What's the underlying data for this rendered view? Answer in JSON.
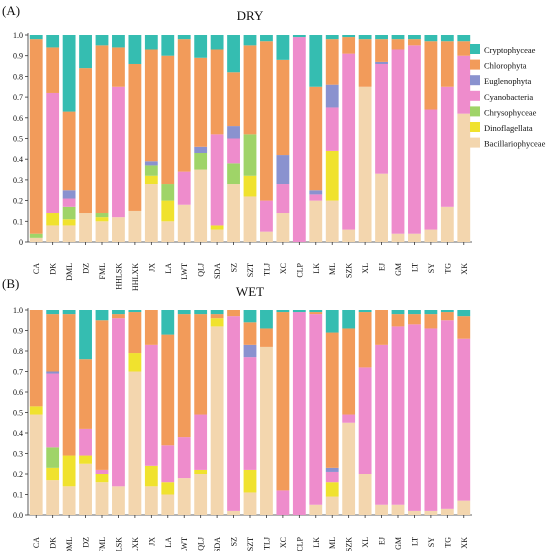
{
  "colors": {
    "Cryptophyceae": "#35bdb1",
    "Chlorophyta": "#f29b5a",
    "Euglenophyta": "#8a92cf",
    "Cyanobacteria": "#ee8ccc",
    "Chrysophyceae": "#9fd468",
    "Dinoflagellata": "#f0e22e",
    "Bacillariophyceae": "#f3d6ae"
  },
  "chart_data": [
    {
      "type": "bar",
      "stacked": true,
      "panel_label": "(A)",
      "title": "DRY",
      "ylim": [
        0,
        1
      ],
      "yticks": [
        "0",
        "0.1",
        "0.2",
        "0.3",
        "0.4",
        "0.5",
        "0.6",
        "0.7",
        "0.8",
        "0.9",
        "1.0"
      ],
      "legend": [
        "Cryptophyceae",
        "Chlorophyta",
        "Euglenophyta",
        "Cyanobacteria",
        "Chrysophyceae",
        "Dinoflagellata",
        "Bacillariophyceae"
      ],
      "legend_position": "top-right",
      "categories": [
        "CA",
        "DK",
        "DML",
        "DZ",
        "FML",
        "HHLSK",
        "HHLXK",
        "JX",
        "LA",
        "LWT",
        "QLJ",
        "SDA",
        "SZ",
        "SZT",
        "TLJ",
        "XC",
        "CLP",
        "LK",
        "ML",
        "SZK",
        "XL",
        "EJ",
        "GM",
        "LT",
        "SY",
        "TG",
        "XK"
      ],
      "series": [
        {
          "name": "Bacillariophyceae",
          "values": [
            0.02,
            0.08,
            0.08,
            0.14,
            0.1,
            0.12,
            0.15,
            0.28,
            0.1,
            0.18,
            0.35,
            0.06,
            0.28,
            0.22,
            0.05,
            0.14,
            0.0,
            0.2,
            0.2,
            0.06,
            0.75,
            0.33,
            0.04,
            0.04,
            0.06,
            0.17,
            0.62
          ]
        },
        {
          "name": "Dinoflagellata",
          "values": [
            0.0,
            0.06,
            0.03,
            0.0,
            0.02,
            0.0,
            0.0,
            0.04,
            0.1,
            0.0,
            0.0,
            0.02,
            0.0,
            0.1,
            0.0,
            0.0,
            0.0,
            0.0,
            0.24,
            0.0,
            0.0,
            0.0,
            0.0,
            0.0,
            0.0,
            0.0,
            0.0
          ]
        },
        {
          "name": "Chrysophyceae",
          "values": [
            0.02,
            0.0,
            0.06,
            0.0,
            0.02,
            0.0,
            0.0,
            0.05,
            0.08,
            0.0,
            0.08,
            0.0,
            0.1,
            0.2,
            0.0,
            0.0,
            0.0,
            0.0,
            0.0,
            0.0,
            0.0,
            0.0,
            0.0,
            0.0,
            0.0,
            0.0,
            0.0
          ]
        },
        {
          "name": "Cyanobacteria",
          "values": [
            0.0,
            0.58,
            0.04,
            0.0,
            0.0,
            0.63,
            0.0,
            0.0,
            0.0,
            0.16,
            0.0,
            0.44,
            0.12,
            0.0,
            0.15,
            0.14,
            0.99,
            0.03,
            0.21,
            0.85,
            0.0,
            0.53,
            0.89,
            0.91,
            0.58,
            0.58,
            0.28
          ]
        },
        {
          "name": "Euglenophyta",
          "values": [
            0.0,
            0.0,
            0.04,
            0.0,
            0.0,
            0.0,
            0.0,
            0.02,
            0.0,
            0.0,
            0.03,
            0.0,
            0.06,
            0.0,
            0.0,
            0.14,
            0.0,
            0.02,
            0.11,
            0.0,
            0.0,
            0.01,
            0.0,
            0.0,
            0.0,
            0.0,
            0.0
          ]
        },
        {
          "name": "Chlorophyta",
          "values": [
            0.94,
            0.22,
            0.38,
            0.7,
            0.81,
            0.19,
            0.71,
            0.54,
            0.62,
            0.64,
            0.43,
            0.41,
            0.26,
            0.43,
            0.77,
            0.46,
            0.0,
            0.5,
            0.22,
            0.08,
            0.23,
            0.11,
            0.05,
            0.03,
            0.33,
            0.22,
            0.07
          ]
        },
        {
          "name": "Cryptophyceae",
          "values": [
            0.02,
            0.06,
            0.37,
            0.16,
            0.05,
            0.06,
            0.14,
            0.07,
            0.1,
            0.02,
            0.11,
            0.07,
            0.18,
            0.05,
            0.03,
            0.12,
            0.01,
            0.25,
            0.02,
            0.01,
            0.02,
            0.02,
            0.02,
            0.02,
            0.03,
            0.03,
            0.03
          ]
        }
      ]
    },
    {
      "type": "bar",
      "stacked": true,
      "panel_label": "(B)",
      "title": "WET",
      "ylim": [
        0,
        1
      ],
      "yticks": [
        "0.0",
        "0.1",
        "0.2",
        "0.3",
        "0.4",
        "0.5",
        "0.6",
        "0.7",
        "0.8",
        "0.9",
        "1.0"
      ],
      "categories": [
        "CA",
        "DK",
        "DML",
        "DZ",
        "FML",
        "HHLSK",
        "HHLXK",
        "JX",
        "LA",
        "LWT",
        "QLJ",
        "SDA",
        "SZ",
        "SZT",
        "TLJ",
        "XC",
        "CLP",
        "LK",
        "ML",
        "SZK",
        "XL",
        "EJ",
        "GM",
        "LT",
        "SY",
        "TG",
        "XK"
      ],
      "series": [
        {
          "name": "Bacillariophyceae",
          "values": [
            0.49,
            0.17,
            0.14,
            0.25,
            0.16,
            0.14,
            0.7,
            0.14,
            0.1,
            0.18,
            0.2,
            0.92,
            0.02,
            0.11,
            0.82,
            0.0,
            0.0,
            0.05,
            0.09,
            0.45,
            0.2,
            0.05,
            0.05,
            0.02,
            0.02,
            0.03,
            0.07
          ]
        },
        {
          "name": "Dinoflagellata",
          "values": [
            0.04,
            0.06,
            0.15,
            0.04,
            0.04,
            0.0,
            0.09,
            0.1,
            0.06,
            0.0,
            0.02,
            0.04,
            0.0,
            0.11,
            0.0,
            0.0,
            0.0,
            0.0,
            0.07,
            0.0,
            0.0,
            0.0,
            0.0,
            0.0,
            0.0,
            0.0,
            0.0
          ]
        },
        {
          "name": "Chrysophyceae",
          "values": [
            0.0,
            0.1,
            0.0,
            0.0,
            0.0,
            0.0,
            0.0,
            0.0,
            0.0,
            0.0,
            0.0,
            0.0,
            0.0,
            0.0,
            0.0,
            0.0,
            0.0,
            0.0,
            0.0,
            0.0,
            0.0,
            0.0,
            0.0,
            0.0,
            0.0,
            0.0,
            0.0
          ]
        },
        {
          "name": "Cyanobacteria",
          "values": [
            0.0,
            0.36,
            0.0,
            0.13,
            0.02,
            0.82,
            0.0,
            0.59,
            0.18,
            0.2,
            0.27,
            0.0,
            0.95,
            0.55,
            0.0,
            0.12,
            0.99,
            0.93,
            0.05,
            0.04,
            0.52,
            0.78,
            0.87,
            0.91,
            0.89,
            0.92,
            0.79
          ]
        },
        {
          "name": "Euglenophyta",
          "values": [
            0.0,
            0.01,
            0.0,
            0.0,
            0.0,
            0.0,
            0.0,
            0.0,
            0.0,
            0.0,
            0.0,
            0.0,
            0.0,
            0.06,
            0.0,
            0.0,
            0.0,
            0.0,
            0.02,
            0.0,
            0.0,
            0.0,
            0.0,
            0.0,
            0.0,
            0.0,
            0.0
          ]
        },
        {
          "name": "Chlorophyta",
          "values": [
            0.47,
            0.28,
            0.69,
            0.34,
            0.73,
            0.02,
            0.2,
            0.17,
            0.54,
            0.6,
            0.49,
            0.02,
            0.03,
            0.11,
            0.09,
            0.87,
            0.0,
            0.01,
            0.66,
            0.42,
            0.27,
            0.17,
            0.06,
            0.05,
            0.07,
            0.04,
            0.11
          ]
        },
        {
          "name": "Cryptophyceae",
          "values": [
            0.0,
            0.02,
            0.02,
            0.24,
            0.05,
            0.02,
            0.01,
            0.0,
            0.12,
            0.02,
            0.02,
            0.02,
            0.0,
            0.06,
            0.09,
            0.01,
            0.01,
            0.01,
            0.11,
            0.09,
            0.01,
            0.0,
            0.02,
            0.02,
            0.02,
            0.01,
            0.03
          ]
        }
      ]
    }
  ]
}
